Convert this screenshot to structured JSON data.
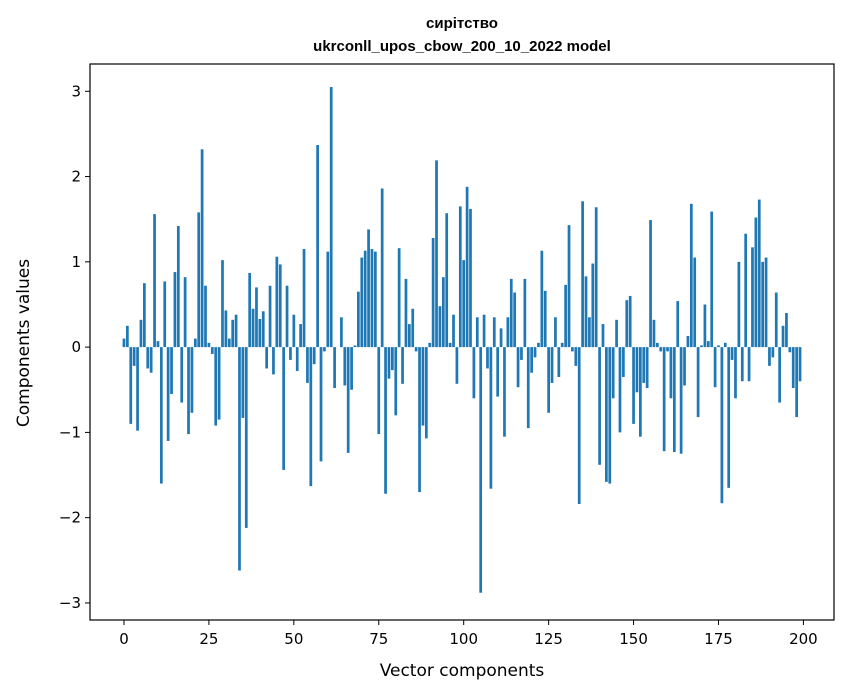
{
  "chart_data": {
    "type": "bar",
    "title_lines": [
      "сирітство",
      "ukrconll_upos_cbow_200_10_2022 model"
    ],
    "xlabel": "Vector components",
    "ylabel": "Components values",
    "xlim": [
      -10,
      209
    ],
    "ylim": [
      -3.2,
      3.32
    ],
    "x_ticks": [
      0,
      25,
      50,
      75,
      100,
      125,
      150,
      175,
      200
    ],
    "y_ticks": [
      -3,
      -2,
      -1,
      0,
      1,
      2,
      3
    ],
    "y_tick_labels": [
      "−3",
      "−2",
      "−1",
      "0",
      "1",
      "2",
      "3"
    ],
    "bar_color": "#1f77b4",
    "grid": false,
    "values": [
      0.1,
      0.25,
      -0.9,
      -0.22,
      -0.98,
      0.32,
      0.75,
      -0.25,
      -0.3,
      1.56,
      0.07,
      -1.6,
      0.77,
      -1.1,
      -0.55,
      0.88,
      1.42,
      -0.65,
      0.82,
      -1.02,
      -0.77,
      0.1,
      1.58,
      2.32,
      0.72,
      0.05,
      -0.08,
      -0.92,
      -0.85,
      1.02,
      0.43,
      0.1,
      0.32,
      0.38,
      -2.62,
      -0.83,
      -2.12,
      0.87,
      0.45,
      0.7,
      0.33,
      0.42,
      -0.25,
      0.72,
      -0.32,
      1.06,
      0.97,
      -1.44,
      0.72,
      -0.15,
      0.38,
      -0.28,
      0.27,
      1.15,
      -0.42,
      -1.63,
      -0.2,
      2.37,
      -1.34,
      -0.05,
      1.12,
      3.05,
      -0.48,
      0.0,
      0.35,
      -0.45,
      -1.24,
      -0.5,
      0.02,
      0.65,
      1.05,
      1.13,
      1.38,
      1.15,
      1.12,
      -1.02,
      1.86,
      -1.72,
      -0.37,
      -0.27,
      -0.8,
      1.16,
      -0.43,
      0.8,
      0.27,
      0.45,
      -0.05,
      -1.7,
      -0.92,
      -1.07,
      0.05,
      1.28,
      2.19,
      0.48,
      0.82,
      1.57,
      0.05,
      0.38,
      -0.43,
      1.65,
      1.02,
      1.88,
      1.62,
      -0.6,
      0.35,
      -2.88,
      0.38,
      -0.25,
      -1.66,
      0.35,
      -0.58,
      0.22,
      -1.05,
      0.35,
      0.8,
      0.64,
      -0.47,
      -0.15,
      0.8,
      -0.95,
      -0.3,
      -0.12,
      0.05,
      1.13,
      0.66,
      -0.77,
      -0.42,
      0.35,
      -0.35,
      0.05,
      0.73,
      1.43,
      -0.05,
      -0.22,
      -1.84,
      1.71,
      0.83,
      0.35,
      0.98,
      1.64,
      -1.38,
      0.27,
      -1.58,
      -1.6,
      -0.6,
      0.32,
      -1.0,
      -0.35,
      0.55,
      0.6,
      -0.9,
      -0.53,
      -1.05,
      -0.42,
      -0.48,
      1.49,
      0.32,
      0.05,
      -0.05,
      -1.22,
      -0.05,
      -0.6,
      -1.23,
      0.54,
      -1.25,
      -0.45,
      0.13,
      1.68,
      1.05,
      -0.82,
      0.02,
      0.5,
      0.07,
      1.59,
      -0.47,
      0.02,
      -1.83,
      0.05,
      -1.65,
      -0.15,
      -0.6,
      1.0,
      -0.4,
      1.33,
      -0.4,
      1.17,
      1.52,
      1.73,
      1.0,
      1.05,
      -0.22,
      -0.12,
      0.64,
      -0.65,
      0.25,
      0.4,
      -0.06,
      -0.48,
      -0.82,
      -0.4
    ]
  }
}
